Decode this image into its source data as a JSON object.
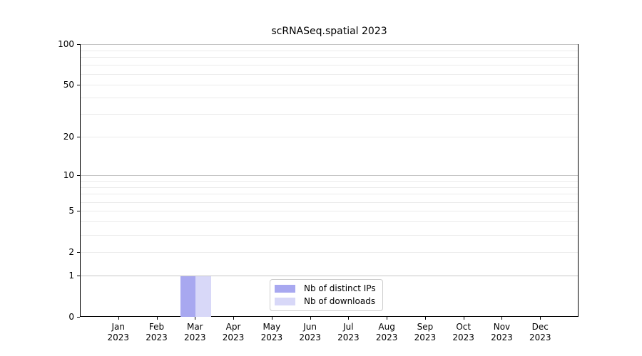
{
  "chart_data": {
    "type": "bar",
    "title": "scRNASeq.spatial 2023",
    "categories": [
      "Jan",
      "Feb",
      "Mar",
      "Apr",
      "May",
      "Jun",
      "Jul",
      "Aug",
      "Sep",
      "Oct",
      "Nov",
      "Dec"
    ],
    "category_year": "2023",
    "series": [
      {
        "name": "Nb of distinct IPs",
        "color": "#a8a8f0",
        "values": [
          0,
          0,
          1,
          0,
          0,
          0,
          0,
          0,
          0,
          0,
          0,
          0
        ]
      },
      {
        "name": "Nb of downloads",
        "color": "#d8d8f8",
        "values": [
          0,
          0,
          1,
          0,
          0,
          0,
          0,
          0,
          0,
          0,
          0,
          0
        ]
      }
    ],
    "xlabel": "",
    "ylabel": "",
    "yscale": "log1p",
    "ylim": [
      0,
      100
    ],
    "yticks": [
      0,
      1,
      2,
      5,
      10,
      20,
      50,
      100
    ],
    "major_gridlines": [
      1,
      10,
      100
    ],
    "minor_gridlines": [
      2,
      3,
      4,
      5,
      6,
      7,
      8,
      9,
      20,
      30,
      40,
      50,
      60,
      70,
      80,
      90
    ],
    "grid": "horizontal",
    "legend_position": "lower center",
    "colors": {
      "spine": "#000000",
      "major_grid": "#c6c6c6",
      "minor_grid": "#ebebeb",
      "text": "#000000",
      "legend_border": "#cccccc",
      "background": "#ffffff"
    }
  }
}
